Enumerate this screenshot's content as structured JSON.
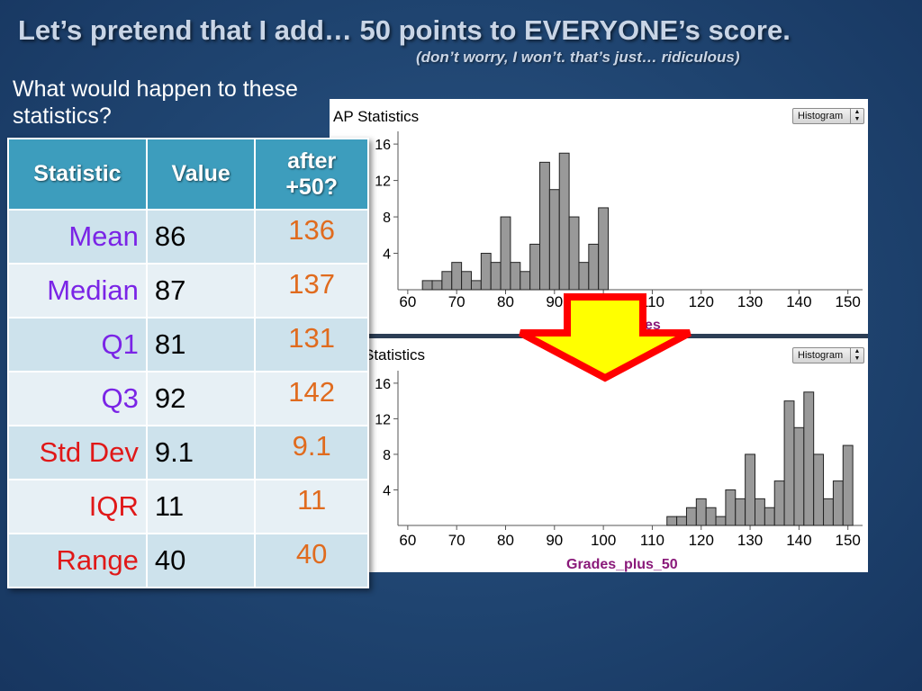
{
  "slide": {
    "title": "Let’s pretend that I add… 50 points to EVERYONE’s score.",
    "subtitle": "(don’t worry, I won’t.  that’s just… ridiculous)",
    "prompt": "What would happen to these statistics?"
  },
  "table": {
    "headers": {
      "statistic": "Statistic",
      "value": "Value",
      "after": "after +50?"
    },
    "rows": [
      {
        "label": "Mean",
        "value": "86",
        "after": "136",
        "label_color": "#7a24e6"
      },
      {
        "label": "Median",
        "value": "87",
        "after": "137",
        "label_color": "#7a24e6"
      },
      {
        "label": "Q1",
        "value": "81",
        "after": "131",
        "label_color": "#7a24e6"
      },
      {
        "label": "Q3",
        "value": "92",
        "after": "142",
        "label_color": "#7a24e6"
      },
      {
        "label": "Std Dev",
        "value": "9.1",
        "after": "9.1",
        "label_color": "#e01818"
      },
      {
        "label": "IQR",
        "value": "11",
        "after": "11",
        "label_color": "#e01818"
      },
      {
        "label": "Range",
        "value": "40",
        "after": "40",
        "label_color": "#e01818"
      }
    ]
  },
  "colors": {
    "after_values": "#e06b1e",
    "bars": "#999999",
    "axis_label": "#8a1a7a",
    "arrow_fill": "#ffff00",
    "arrow_stroke": "#ff0000"
  },
  "chart_data": [
    {
      "type": "bar",
      "title": "AP Statistics",
      "menu_label": "Histogram",
      "xlabel": "",
      "xlabel_visible_fragment": "es",
      "ylabel": "",
      "x_ticks": [
        60,
        70,
        80,
        90,
        100,
        110,
        120,
        130,
        140,
        150
      ],
      "y_ticks": [
        4,
        8,
        12,
        16
      ],
      "xlim": [
        58,
        153
      ],
      "ylim": [
        0,
        17
      ],
      "bin_width": 2,
      "bins_start": [
        63,
        65,
        67,
        69,
        71,
        73,
        75,
        77,
        79,
        81,
        83,
        85,
        87,
        89,
        91,
        93,
        95,
        97,
        99
      ],
      "values": [
        1,
        1,
        2,
        3,
        2,
        1,
        4,
        3,
        8,
        3,
        2,
        5,
        14,
        11,
        15,
        8,
        3,
        5,
        9
      ]
    },
    {
      "type": "bar",
      "title": "Statistics",
      "menu_label": "Histogram",
      "xlabel": "Grades_plus_50",
      "ylabel": "",
      "x_ticks": [
        60,
        70,
        80,
        90,
        100,
        110,
        120,
        130,
        140,
        150
      ],
      "y_ticks": [
        4,
        8,
        12,
        16
      ],
      "xlim": [
        58,
        153
      ],
      "ylim": [
        0,
        17
      ],
      "bin_width": 2,
      "bins_start": [
        113,
        115,
        117,
        119,
        121,
        123,
        125,
        127,
        129,
        131,
        133,
        135,
        137,
        139,
        141,
        143,
        145,
        147,
        149
      ],
      "values": [
        1,
        1,
        2,
        3,
        2,
        1,
        4,
        3,
        8,
        3,
        2,
        5,
        14,
        11,
        15,
        8,
        3,
        5,
        9
      ]
    }
  ],
  "arrow": {
    "icon": "down-arrow-icon"
  }
}
